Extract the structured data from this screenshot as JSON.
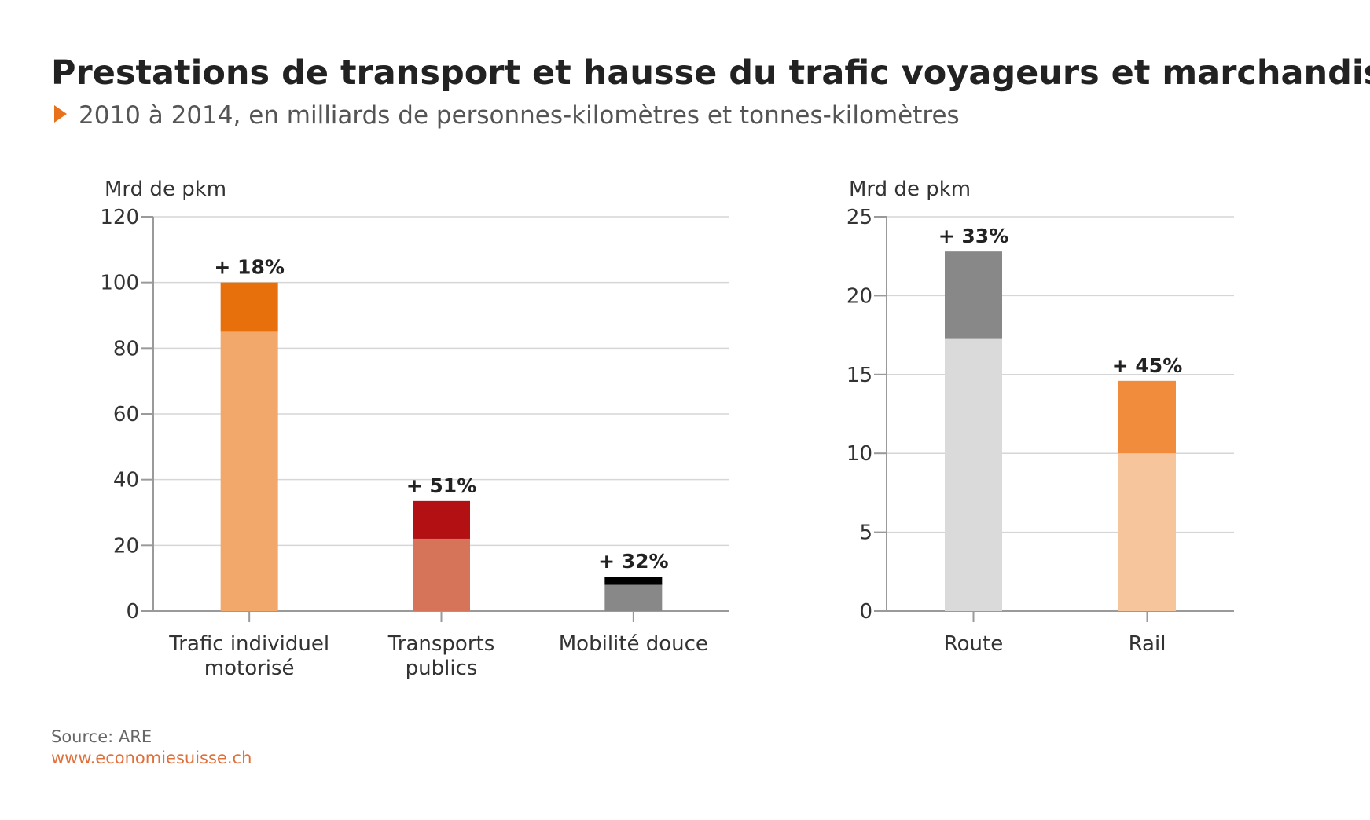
{
  "header": {
    "title": "Prestations de transport et hausse du trafic voyageurs et marchandises",
    "subtitle": "2010 à 2014, en milliards de personnes-kilomètres et tonnes-kilomètres",
    "accent_color": "#e8711c"
  },
  "footer": {
    "source": "Source: ARE",
    "url": "www.economiesuisse.ch"
  },
  "chart_data": [
    {
      "type": "bar",
      "stacked": true,
      "ylabel": "Mrd de pkm",
      "ylim": [
        0,
        120
      ],
      "yticks": [
        0,
        20,
        40,
        60,
        80,
        100,
        120
      ],
      "grid": true,
      "categories": [
        "Trafic individuel motorisé",
        "Transports publics",
        "Mobilité douce"
      ],
      "category_lines": [
        [
          "Trafic individuel",
          "motorisé"
        ],
        [
          "Transports",
          "publics"
        ],
        [
          "Mobilité douce"
        ]
      ],
      "series": [
        {
          "values": [
            85,
            22,
            8
          ],
          "colors": [
            "#f2a86b",
            "#d6745a",
            "#888888"
          ]
        },
        {
          "values": [
            15,
            11.5,
            2.5
          ],
          "colors": [
            "#e8700c",
            "#b31014",
            "#000000"
          ]
        }
      ],
      "labels": [
        "+ 18%",
        "+ 51%",
        "+ 32%"
      ]
    },
    {
      "type": "bar",
      "stacked": true,
      "ylabel": "Mrd de pkm",
      "ylim": [
        0,
        25
      ],
      "yticks": [
        0,
        5,
        10,
        15,
        20,
        25
      ],
      "grid": true,
      "categories": [
        "Route",
        "Rail"
      ],
      "category_lines": [
        [
          "Route"
        ],
        [
          "Rail"
        ]
      ],
      "series": [
        {
          "values": [
            17.3,
            10
          ],
          "colors": [
            "#dadada",
            "#f6c59c"
          ]
        },
        {
          "values": [
            5.5,
            4.6
          ],
          "colors": [
            "#888888",
            "#f08c3c"
          ]
        }
      ],
      "labels": [
        "+ 33%",
        "+ 45%"
      ]
    }
  ]
}
